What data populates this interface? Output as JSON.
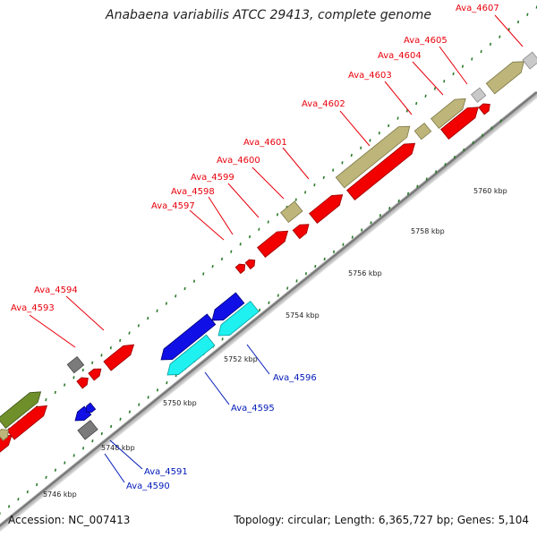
{
  "title": "Anabaena variabilis ATCC 29413, complete genome",
  "footer": {
    "accession": "Accession: NC_007413",
    "summary": "Topology: circular; Length: 6,365,727 bp; Genes: 5,104"
  },
  "colors": {
    "forward_label": "#e8000b",
    "reverse_label": "#0019b8",
    "tick": "#2a7a2a",
    "backbone": "#7a7a7a"
  },
  "ticks": [
    {
      "label": "5746 kbp"
    },
    {
      "label": "5748 kbp"
    },
    {
      "label": "5750 kbp"
    },
    {
      "label": "5752 kbp"
    },
    {
      "label": "5754 kbp"
    },
    {
      "label": "5756 kbp"
    },
    {
      "label": "5758 kbp"
    },
    {
      "label": "5760 kbp"
    }
  ],
  "genes_forward": [
    {
      "label": "Ava_4593"
    },
    {
      "label": "Ava_4594"
    },
    {
      "label": "Ava_4597"
    },
    {
      "label": "Ava_4598"
    },
    {
      "label": "Ava_4599"
    },
    {
      "label": "Ava_4600"
    },
    {
      "label": "Ava_4601"
    },
    {
      "label": "Ava_4602"
    },
    {
      "label": "Ava_4603"
    },
    {
      "label": "Ava_4604"
    },
    {
      "label": "Ava_4605"
    },
    {
      "label": "Ava_4607"
    }
  ],
  "genes_reverse": [
    {
      "label": "Ava_4590"
    },
    {
      "label": "Ava_4591"
    },
    {
      "label": "Ava_4595"
    },
    {
      "label": "Ava_4596"
    }
  ]
}
